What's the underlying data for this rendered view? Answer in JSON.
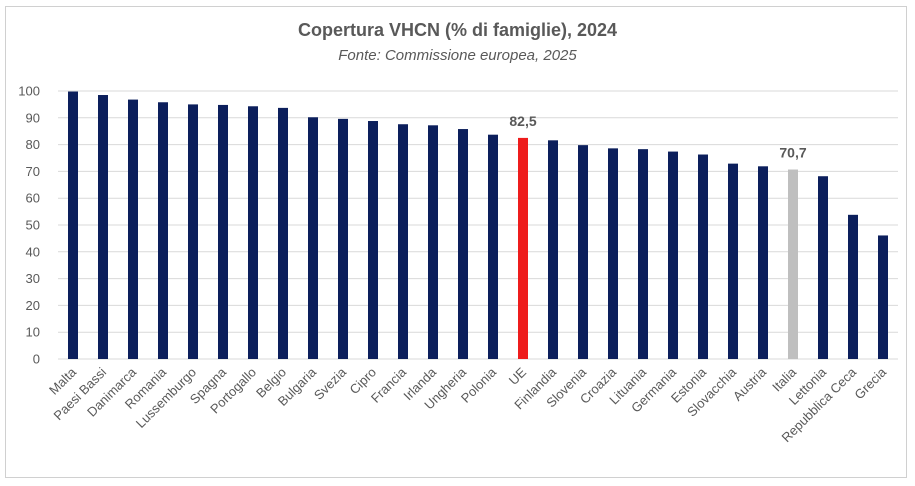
{
  "chart_data": {
    "type": "bar",
    "title": "Copertura VHCN (% di famiglie), 2024",
    "subtitle": "Fonte: Commissione europea, 2025",
    "xlabel": "",
    "ylabel": "",
    "ylim": [
      0,
      100
    ],
    "yticks": [
      "0",
      "10",
      "20",
      "30",
      "40",
      "50",
      "60",
      "70",
      "80",
      "90",
      "100"
    ],
    "grid": true,
    "categories": [
      "Malta",
      "Paesi Bassi",
      "Danimarca",
      "Romania",
      "Lussemburgo",
      "Spagna",
      "Portogallo",
      "Belgio",
      "Bulgaria",
      "Svezia",
      "Cipro",
      "Francia",
      "Irlanda",
      "Ungheria",
      "Polonia",
      "UE",
      "Finlandia",
      "Slovenia",
      "Croazia",
      "Lituania",
      "Germania",
      "Estonia",
      "Slovacchia",
      "Austria",
      "Italia",
      "Lettonia",
      "Repubblica Ceca",
      "Grecia"
    ],
    "values": [
      99.8,
      98.5,
      96.8,
      95.8,
      95.0,
      94.8,
      94.3,
      93.7,
      90.2,
      89.6,
      88.8,
      87.6,
      87.2,
      85.8,
      83.7,
      82.5,
      81.6,
      79.8,
      78.6,
      78.3,
      77.4,
      76.3,
      72.9,
      71.9,
      70.7,
      68.2,
      53.8,
      46.1
    ],
    "colors": {
      "default": "#0c1f5c",
      "highlight_ue": "#ee1c1c",
      "highlight_italia": "#bfbfbf",
      "grid": "#d9d9d9",
      "text": "#595959"
    },
    "highlights": {
      "UE": "highlight_ue",
      "Italia": "highlight_italia"
    },
    "data_labels": [
      {
        "category": "UE",
        "text": "82,5"
      },
      {
        "category": "Italia",
        "text": "70,7"
      }
    ]
  }
}
